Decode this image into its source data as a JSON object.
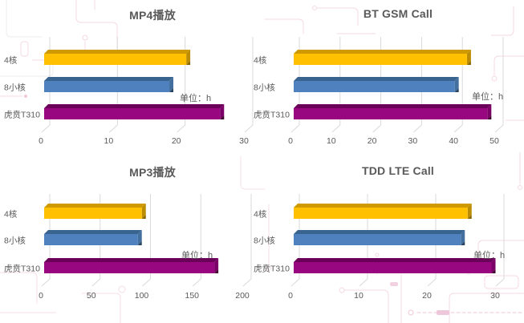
{
  "colors": {
    "background": "#FFFFFF",
    "title_text": "#595959",
    "axis_text": "#595959",
    "gridline": "#D9D9D9",
    "bars": {
      "core4": {
        "front": "#FFC000",
        "top": "#CE9A00",
        "side": "#BC8D04",
        "corner": "#8A6800"
      },
      "core8": {
        "front": "#4E81BD",
        "top": "#3A6490",
        "side": "#436F9E",
        "corner": "#27435F"
      },
      "t310": {
        "front": "#98077F",
        "top": "#6B0058",
        "side": "#7B0067",
        "corner": "#43002F"
      }
    },
    "circuit_pink": "#F4D9E6",
    "circuit_pink_strong": "#EFC7DA",
    "circuit_gray": "#ECECEC"
  },
  "chart_data": [
    {
      "type": "bar",
      "orientation": "horizontal",
      "title": "MP4播放",
      "categories": [
        "4核",
        "8小核",
        "虎贲T310"
      ],
      "values": [
        21,
        18.5,
        26
      ],
      "xticks": [
        0,
        10,
        20,
        30
      ],
      "xlim": [
        0,
        30
      ],
      "unit_label": "单位：h",
      "xlabel": "",
      "ylabel": "",
      "grid": "vertical",
      "legend": "none"
    },
    {
      "type": "bar",
      "orientation": "horizontal",
      "title": "BT GSM Call",
      "categories": [
        "4核",
        "8小核",
        "虎贲T310"
      ],
      "values": [
        42.5,
        39.5,
        47.5
      ],
      "xticks": [
        0,
        10,
        20,
        30,
        40,
        50
      ],
      "xlim": [
        0,
        50
      ],
      "unit_label": "单位：h",
      "xlabel": "",
      "ylabel": "",
      "grid": "vertical",
      "legend": "none"
    },
    {
      "type": "bar",
      "orientation": "horizontal",
      "title": "MP3播放",
      "categories": [
        "4核",
        "8小核",
        "虎贲T310"
      ],
      "values": [
        97,
        93,
        169
      ],
      "xticks": [
        0,
        50,
        100,
        150,
        200
      ],
      "xlim": [
        0,
        200
      ],
      "unit_label": "单位：h",
      "xlabel": "",
      "ylabel": "",
      "grid": "vertical",
      "legend": "none"
    },
    {
      "type": "bar",
      "orientation": "horizontal",
      "title": "TDD LTE Call",
      "categories": [
        "4核",
        "8小核",
        "虎贲T310"
      ],
      "values": [
        25.5,
        24.5,
        29
      ],
      "xticks": [
        0,
        10,
        20,
        30
      ],
      "xlim": [
        0,
        30
      ],
      "unit_label": "单位：h",
      "xlabel": "",
      "ylabel": "",
      "grid": "vertical",
      "legend": "none"
    }
  ]
}
